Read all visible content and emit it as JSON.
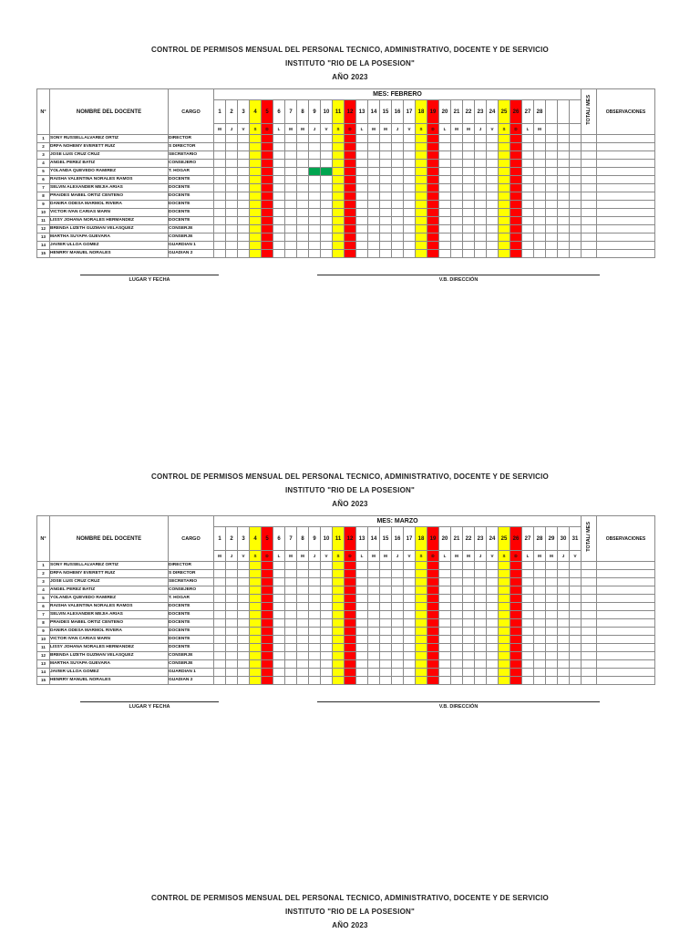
{
  "page": {
    "title": "CONTROL DE PERMISOS MENSUAL DEL PERSONAL TECNICO, ADMINISTRATIVO, DOCENTE Y DE SERVICIO",
    "subtitle": "INSTITUTO \"RIO DE LA POSESION\"",
    "year_line": "AÑO 2023"
  },
  "headers": {
    "num": "N°",
    "name": "NOMBRE DEL DOCENTE",
    "cargo": "CARGO",
    "total": "TOTAL/ MES",
    "observations": "OBSERVACIONES"
  },
  "colors": {
    "saturday": "#FFFF00",
    "sunday": "#FF0000",
    "permit_mark": "#00A550"
  },
  "staff": [
    {
      "n": 1,
      "name": "SONY RUSSELLALVAREZ ORTIZ",
      "cargo": "DIRECTOR"
    },
    {
      "n": 2,
      "name": "DRFA NOHEMY EVERETT RUIZ",
      "cargo": "S DIRECTOR"
    },
    {
      "n": 3,
      "name": "JOSE LUIS CRUZ CRUZ",
      "cargo": "SECRETARIO"
    },
    {
      "n": 4,
      "name": "ANGEL PEREZ BATIZ",
      "cargo": "CONSEJERO"
    },
    {
      "n": 5,
      "name": "YOLANDA QUEVEDO RAMIREZ",
      "cargo": "T. HOGAR"
    },
    {
      "n": 6,
      "name": "RAISHA VALENTINA NORALES RAMOS",
      "cargo": "DOCENTE"
    },
    {
      "n": 7,
      "name": "SELVIN ALEXANDER MEJIA ARIAS",
      "cargo": "DOCENTE"
    },
    {
      "n": 8,
      "name": "PRAIDES MABEL ORTIZ CENTENO",
      "cargo": "DOCENTE"
    },
    {
      "n": 9,
      "name": "DANIRA ODESA MARMOL RIVERA",
      "cargo": "DOCENTE"
    },
    {
      "n": 10,
      "name": "VICTOR IVAN CARIAS MARN",
      "cargo": "DOCENTE"
    },
    {
      "n": 11,
      "name": "LISSY JOHANA NORALES HERMANDEZ",
      "cargo": "DOCENTE"
    },
    {
      "n": 12,
      "name": "BRENDA LIZETH GUZMAN VELASQUEZ",
      "cargo": "CONSERJE"
    },
    {
      "n": 13,
      "name": "MARTHA SUYAPA GUEVARA",
      "cargo": "CONSERJE"
    },
    {
      "n": 14,
      "name": "JAVIER ULLOA GOMEZ",
      "cargo": "GUARDIAN 1"
    },
    {
      "n": 15,
      "name": "HENRRY MANUEL NORALES",
      "cargo": "GUADIAN 2"
    }
  ],
  "months": [
    {
      "label": "MES: FEBRERO",
      "days": [
        1,
        2,
        3,
        4,
        5,
        6,
        7,
        8,
        9,
        10,
        11,
        12,
        13,
        14,
        15,
        16,
        17,
        18,
        19,
        20,
        21,
        22,
        23,
        24,
        25,
        26,
        27,
        28
      ],
      "letters": [
        "M",
        "J",
        "V",
        "S",
        "D",
        "L",
        "M",
        "M",
        "J",
        "V",
        "S",
        "D",
        "L",
        "M",
        "M",
        "J",
        "V",
        "S",
        "D",
        "L",
        "M",
        "M",
        "J",
        "V",
        "S",
        "D",
        "L",
        "M"
      ],
      "blank_columns": 3,
      "marks": [
        {
          "staff_n": 5,
          "day_from": 9,
          "day_to": 10,
          "color": "#00A550"
        }
      ]
    },
    {
      "label": "MES: MARZO",
      "days": [
        1,
        2,
        3,
        4,
        5,
        6,
        7,
        8,
        9,
        10,
        11,
        12,
        13,
        14,
        15,
        16,
        17,
        18,
        19,
        20,
        21,
        22,
        23,
        24,
        25,
        26,
        27,
        28,
        29,
        30,
        31
      ],
      "letters": [
        "M",
        "J",
        "V",
        "S",
        "D",
        "L",
        "M",
        "M",
        "J",
        "V",
        "S",
        "D",
        "L",
        "M",
        "M",
        "J",
        "V",
        "S",
        "D",
        "L",
        "M",
        "M",
        "J",
        "V",
        "S",
        "D",
        "L",
        "M",
        "M",
        "J",
        "V"
      ],
      "blank_columns": 0,
      "marks": []
    }
  ],
  "signatures": {
    "lugar": "LUGAR Y FECHA",
    "vb": "V.B. DIRECCIÓN"
  }
}
